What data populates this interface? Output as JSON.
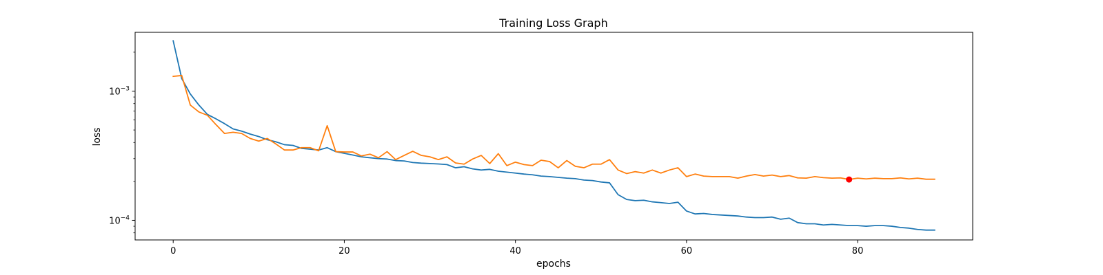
{
  "chart_data": {
    "type": "line",
    "title": "Training Loss Graph",
    "xlabel": "epochs",
    "ylabel": "loss",
    "xlim": [
      -4.45,
      93.45
    ],
    "ylim": [
      7.05e-05,
      0.00285
    ],
    "yscale": "log",
    "x_ticks": [
      0,
      20,
      40,
      60,
      80
    ],
    "x_tick_labels": [
      "0",
      "20",
      "40",
      "60",
      "80"
    ],
    "y_ticks": [
      0.0001,
      0.001
    ],
    "y_tick_labels": [
      {
        "base": "10",
        "exp": "−4"
      },
      {
        "base": "10",
        "exp": "−3"
      }
    ],
    "grid": false,
    "legend": "none",
    "x": [
      0,
      1,
      2,
      3,
      4,
      5,
      6,
      7,
      8,
      9,
      10,
      11,
      12,
      13,
      14,
      15,
      16,
      17,
      18,
      19,
      20,
      21,
      22,
      23,
      24,
      25,
      26,
      27,
      28,
      29,
      30,
      31,
      32,
      33,
      34,
      35,
      36,
      37,
      38,
      39,
      40,
      41,
      42,
      43,
      44,
      45,
      46,
      47,
      48,
      49,
      50,
      51,
      52,
      53,
      54,
      55,
      56,
      57,
      58,
      59,
      60,
      61,
      62,
      63,
      64,
      65,
      66,
      67,
      68,
      69,
      70,
      71,
      72,
      73,
      74,
      75,
      76,
      77,
      78,
      79,
      80,
      81,
      82,
      83,
      84,
      85,
      86,
      87,
      88,
      89
    ],
    "series": [
      {
        "color": "#1f77b4",
        "values": [
          0.00245,
          0.00125,
          0.00095,
          0.00078,
          0.00066,
          0.00061,
          0.00056,
          0.00051,
          0.00049,
          0.000465,
          0.000445,
          0.00042,
          0.000405,
          0.000385,
          0.00038,
          0.00036,
          0.000355,
          0.00035,
          0.000365,
          0.00034,
          0.00033,
          0.00032,
          0.00031,
          0.000305,
          0.0003,
          0.000298,
          0.00029,
          0.000288,
          0.00028,
          0.000277,
          0.000275,
          0.000273,
          0.00027,
          0.000255,
          0.00026,
          0.00025,
          0.000245,
          0.000248,
          0.00024,
          0.000236,
          0.000232,
          0.000228,
          0.000225,
          0.00022,
          0.000218,
          0.000215,
          0.000212,
          0.00021,
          0.000205,
          0.000203,
          0.000198,
          0.000195,
          0.000158,
          0.000145,
          0.000142,
          0.000143,
          0.000139,
          0.000137,
          0.000135,
          0.000138,
          0.000118,
          0.000112,
          0.000113,
          0.000111,
          0.00011,
          0.000109,
          0.000108,
          0.000106,
          0.000105,
          0.000105,
          0.000106,
          0.000102,
          0.000104,
          9.6e-05,
          9.4e-05,
          9.4e-05,
          9.2e-05,
          9.3e-05,
          9.2e-05,
          9.1e-05,
          9.1e-05,
          9e-05,
          9.1e-05,
          9.1e-05,
          9e-05,
          8.8e-05,
          8.7e-05,
          8.5e-05,
          8.4e-05,
          8.4e-05
        ]
      },
      {
        "color": "#ff7f0e",
        "values": [
          0.0013,
          0.00132,
          0.00078,
          0.00069,
          0.00065,
          0.00055,
          0.00047,
          0.00048,
          0.00047,
          0.00043,
          0.00041,
          0.00043,
          0.00039,
          0.00035,
          0.00035,
          0.000365,
          0.000365,
          0.000345,
          0.00054,
          0.00034,
          0.000338,
          0.000338,
          0.000315,
          0.000325,
          0.000305,
          0.00034,
          0.000295,
          0.000318,
          0.000342,
          0.000318,
          0.00031,
          0.000295,
          0.00031,
          0.000278,
          0.000272,
          0.000298,
          0.000318,
          0.000275,
          0.000328,
          0.000265,
          0.000282,
          0.00027,
          0.000265,
          0.000292,
          0.000285,
          0.000255,
          0.00029,
          0.000262,
          0.000255,
          0.000272,
          0.000272,
          0.000295,
          0.000245,
          0.00023,
          0.000238,
          0.000232,
          0.000245,
          0.000232,
          0.000245,
          0.000255,
          0.000218,
          0.000228,
          0.00022,
          0.000218,
          0.000218,
          0.000218,
          0.000212,
          0.00022,
          0.000226,
          0.00022,
          0.000224,
          0.000218,
          0.000222,
          0.000213,
          0.000212,
          0.000218,
          0.000214,
          0.000212,
          0.000213,
          0.000207,
          0.000212,
          0.000209,
          0.000212,
          0.00021,
          0.00021,
          0.000213,
          0.000209,
          0.000212,
          0.000208,
          0.000208
        ]
      }
    ],
    "marker": {
      "x": 79,
      "y": 0.000207,
      "color": "#ff0000"
    }
  }
}
